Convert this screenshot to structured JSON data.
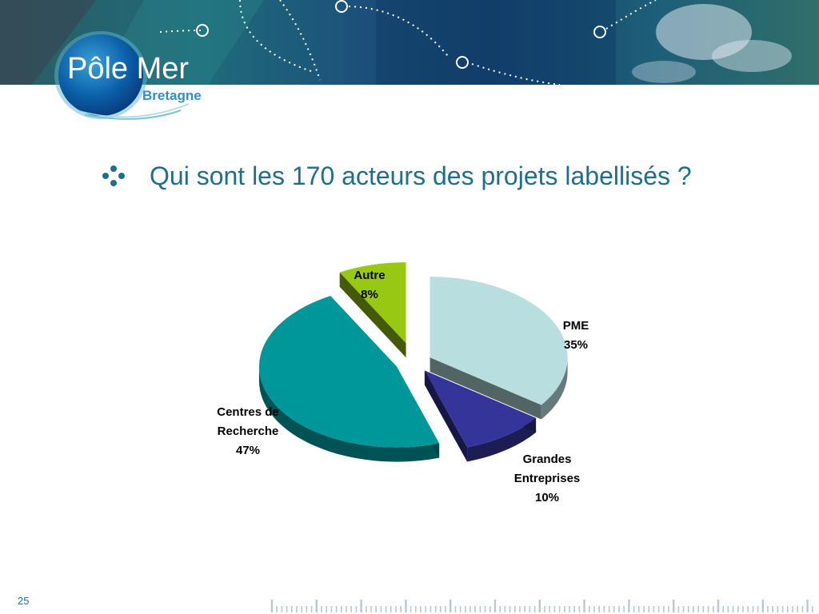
{
  "header": {
    "logo": {
      "line1": "Pôle Mer",
      "line2": "Bretagne"
    }
  },
  "slide": {
    "bullet_icon": "four-dot-bullet-icon",
    "title": "Qui sont les 170 acteurs des projets labellisés ?",
    "page_number": "25"
  },
  "colors": {
    "title": "#1f6e8c",
    "pme": "#b9dee0",
    "grandes_entreprises": "#34349a",
    "centres_de_recherche": "#00979a",
    "autre": "#99c812"
  },
  "chart_data": {
    "type": "pie",
    "style": "3d-exploded",
    "slices": [
      {
        "label_lines": [
          "PME",
          "35%"
        ],
        "value": 35,
        "color": "#b9dee0"
      },
      {
        "label_lines": [
          "Grandes",
          "Entreprises",
          "10%"
        ],
        "value": 10,
        "color": "#34349a"
      },
      {
        "label_lines": [
          "Centres de",
          "Recherche",
          "47%"
        ],
        "value": 47,
        "color": "#00979a"
      },
      {
        "label_lines": [
          "Autre",
          "8%"
        ],
        "value": 8,
        "color": "#99c812"
      }
    ]
  }
}
